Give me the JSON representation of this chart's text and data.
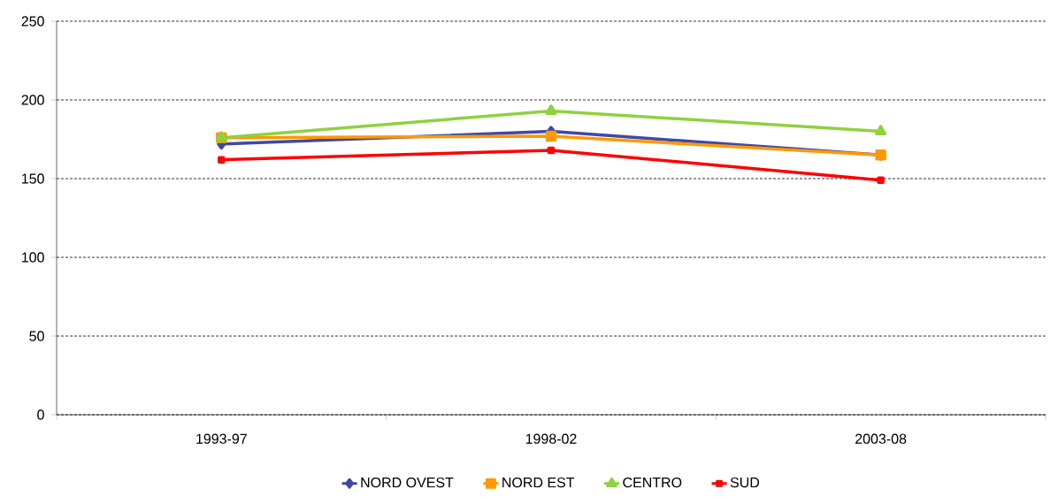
{
  "chart_data": {
    "type": "line",
    "categories": [
      "1993-97",
      "1998-02",
      "2003-08"
    ],
    "series": [
      {
        "name": "NORD OVEST",
        "color": "#3f48a8",
        "marker": "diamond",
        "values": [
          172,
          180,
          165
        ]
      },
      {
        "name": "NORD EST",
        "color": "#ff9900",
        "marker": "square",
        "values": [
          176,
          177,
          165
        ]
      },
      {
        "name": "CENTRO",
        "color": "#8fd13f",
        "marker": "triangle",
        "values": [
          176,
          193,
          180
        ]
      },
      {
        "name": "SUD",
        "color": "#ff0000",
        "marker": "square",
        "values": [
          162,
          168,
          149
        ]
      }
    ],
    "ylim": [
      0,
      250
    ],
    "yticks": [
      0,
      50,
      100,
      150,
      200,
      250
    ],
    "grid": "y",
    "legend": "bottom",
    "line_style": "solid"
  }
}
